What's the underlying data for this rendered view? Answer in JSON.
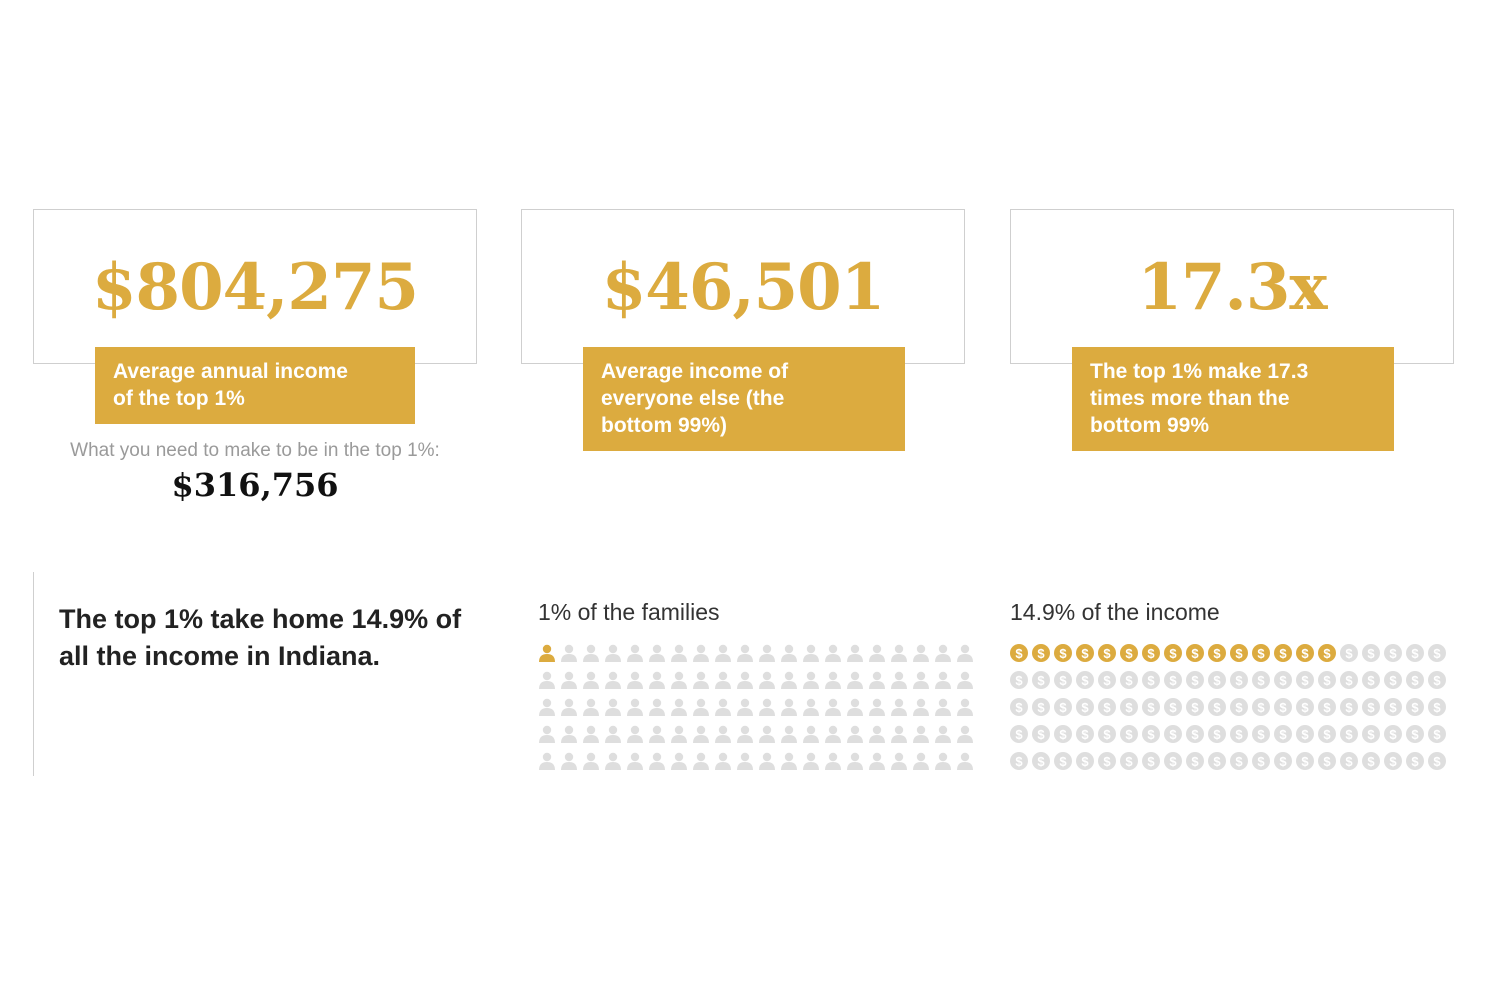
{
  "colors": {
    "accent": "#dcab3f",
    "inactive": "#dedede",
    "card_border": "#cfcfcf",
    "tag_text": "#ffffff"
  },
  "stats": [
    {
      "value": "$804,275",
      "caption_lines": [
        "Average annual income",
        "of the top 1%"
      ]
    },
    {
      "value": "$46,501",
      "caption_lines": [
        "Average income of",
        "everyone else (the",
        "bottom 99%)"
      ]
    },
    {
      "value": "17.3x",
      "caption_lines": [
        "The top 1% make 17.3",
        "times more than the",
        "bottom 99%"
      ]
    }
  ],
  "threshold": {
    "label": "What you need to make to be in the top 1%:",
    "value": "$316,756"
  },
  "headline_lines": [
    "The top 1% take home 14.9% of",
    "all the income in Indiana."
  ],
  "chart_data": [
    {
      "type": "waffle",
      "title": "1% of the families",
      "icon": "person-icon",
      "rows": 5,
      "cols": 20,
      "total": 100,
      "highlighted": 1
    },
    {
      "type": "waffle",
      "title": "14.9% of the income",
      "icon": "dollar-coin-icon",
      "rows": 5,
      "cols": 20,
      "total": 100,
      "highlighted": 15
    }
  ]
}
